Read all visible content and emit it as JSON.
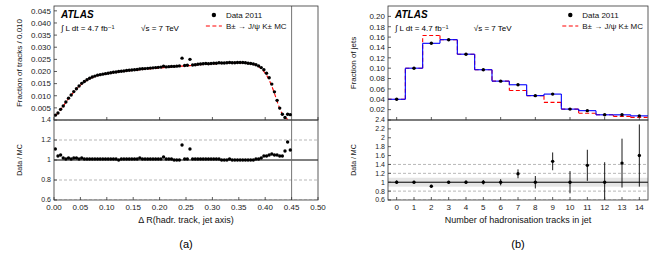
{
  "chart_data": [
    {
      "type": "line",
      "ylabel": "Fraction of tracks / 0.010",
      "annotations": [
        "ATLAS",
        "∫ L dt = 4.7 fb⁻¹",
        "√s = 7 TeV"
      ],
      "legend": "upper right",
      "tick_labels": "y",
      "xlim": [
        0.0,
        0.5
      ],
      "ylim": [
        0.0,
        0.047
      ],
      "xticks": [
        0,
        0.1,
        0.2,
        0.3,
        0.4,
        0.5
      ],
      "yticks": [
        0.005,
        {
          "value": 0.01,
          "label": "0.010"
        },
        0.015,
        {
          "value": 0.02,
          "label": "0.020"
        },
        0.025,
        {
          "value": 0.03,
          "label": "0.030"
        },
        0.035,
        {
          "value": 0.04,
          "label": "0.040"
        },
        0.045
      ],
      "vlines": [
        0.45
      ],
      "x": [
        0.0025,
        0.0075,
        0.0125,
        0.0175,
        0.0225,
        0.0275,
        0.0325,
        0.0375,
        0.0425,
        0.0475,
        0.0525,
        0.0575,
        0.0625,
        0.0675,
        0.0725,
        0.0775,
        0.0825,
        0.0875,
        0.0925,
        0.0975,
        0.1025,
        0.1075,
        0.1125,
        0.1175,
        0.1225,
        0.1275,
        0.1325,
        0.1375,
        0.1425,
        0.1475,
        0.1525,
        0.1575,
        0.1625,
        0.1675,
        0.1725,
        0.1775,
        0.1825,
        0.1875,
        0.1925,
        0.1975,
        0.2025,
        0.2075,
        0.2125,
        0.2175,
        0.2225,
        0.2275,
        0.2325,
        0.2375,
        0.2425,
        0.2475,
        0.2525,
        0.2575,
        0.2625,
        0.2675,
        0.2725,
        0.2775,
        0.2825,
        0.2875,
        0.2925,
        0.2975,
        0.3025,
        0.3075,
        0.3125,
        0.3175,
        0.3225,
        0.3275,
        0.3325,
        0.3375,
        0.3425,
        0.3475,
        0.3525,
        0.3575,
        0.3625,
        0.3675,
        0.3725,
        0.3775,
        0.3825,
        0.3875,
        0.3925,
        0.3975,
        0.4025,
        0.4075,
        0.4125,
        0.4175,
        0.4225,
        0.4275,
        0.4325,
        0.4375,
        0.4425,
        0.4475
      ],
      "series": [
        {
          "name": "Data 2011",
          "type": "scatter",
          "color": "black",
          "marker": "dot",
          "values": [
            0.002,
            0.0029,
            0.0044,
            0.0058,
            0.0074,
            0.009,
            0.0103,
            0.0117,
            0.0129,
            0.014,
            0.0151,
            0.0159,
            0.0166,
            0.0172,
            0.0177,
            0.0181,
            0.0185,
            0.0187,
            0.0189,
            0.0191,
            0.0193,
            0.0195,
            0.0197,
            0.0198,
            0.02,
            0.0201,
            0.0202,
            0.0204,
            0.0205,
            0.0206,
            0.0207,
            0.0208,
            0.021,
            0.0211,
            0.0212,
            0.0213,
            0.0214,
            0.0215,
            0.0216,
            0.0217,
            0.0218,
            0.0222,
            0.0219,
            0.022,
            0.0221,
            0.0221,
            0.0222,
            0.0223,
            0.0255,
            0.0225,
            0.0226,
            0.025,
            0.0227,
            0.0228,
            0.023,
            0.0231,
            0.0232,
            0.0233,
            0.0232,
            0.0233,
            0.0234,
            0.0234,
            0.0236,
            0.0235,
            0.0235,
            0.0236,
            0.0237,
            0.0236,
            0.0236,
            0.0237,
            0.0237,
            0.0237,
            0.0236,
            0.0234,
            0.0233,
            0.0231,
            0.0228,
            0.0223,
            0.0216,
            0.0207,
            0.0193,
            0.0174,
            0.0148,
            0.0116,
            0.0081,
            0.0049,
            0.0024,
            0.001,
            0.0024,
            0.0022
          ]
        },
        {
          "name": "B± → J/ψ K± MC",
          "type": "line",
          "color": "red",
          "line_style": "dashed",
          "values": [
            0.0018,
            0.0028,
            0.0042,
            0.0057,
            0.0073,
            0.0088,
            0.0102,
            0.0115,
            0.0127,
            0.0138,
            0.0148,
            0.0157,
            0.0164,
            0.017,
            0.0175,
            0.0179,
            0.0183,
            0.0186,
            0.0188,
            0.019,
            0.0192,
            0.0194,
            0.0196,
            0.0197,
            0.0199,
            0.02,
            0.0201,
            0.0202,
            0.0203,
            0.0204,
            0.0205,
            0.0206,
            0.0207,
            0.0208,
            0.0209,
            0.021,
            0.0211,
            0.0212,
            0.0213,
            0.0214,
            0.0215,
            0.0216,
            0.0217,
            0.0218,
            0.0219,
            0.022,
            0.0221,
            0.0222,
            0.0222,
            0.0223,
            0.0224,
            0.0224,
            0.0225,
            0.0226,
            0.0227,
            0.0228,
            0.0229,
            0.0229,
            0.023,
            0.0231,
            0.0232,
            0.0232,
            0.0233,
            0.0234,
            0.0234,
            0.0235,
            0.0235,
            0.0236,
            0.0236,
            0.0236,
            0.0236,
            0.0236,
            0.0235,
            0.0234,
            0.0233,
            0.023,
            0.0226,
            0.022,
            0.0212,
            0.02,
            0.0185,
            0.0165,
            0.014,
            0.011,
            0.0077,
            0.0047,
            0.0023,
            0.0009,
            0.0003,
            0.0001
          ]
        }
      ]
    },
    {
      "type": "scatter",
      "xlabel": "Δ R(hadr. track, jet axis)",
      "ylabel": "Data / MC",
      "annotations": [
        "(a)"
      ],
      "xlim": [
        0.0,
        0.5
      ],
      "ylim": [
        0.6,
        1.4
      ],
      "xticks": [
        {
          "value": 0,
          "label": "0.00"
        },
        0.05,
        {
          "value": 0.1,
          "label": "0.10"
        },
        0.15,
        {
          "value": 0.2,
          "label": "0.20"
        },
        0.25,
        {
          "value": 0.3,
          "label": "0.30"
        },
        0.35,
        {
          "value": 0.4,
          "label": "0.40"
        },
        0.45,
        {
          "value": 0.5,
          "label": "0.50"
        }
      ],
      "yticks": [
        0.6,
        0.8,
        1,
        1.2,
        1.4
      ],
      "hlines": [
        0.6,
        0.8,
        1.2,
        1.4
      ],
      "reference_line": 1.0,
      "vlines": [
        0.45
      ],
      "x": [
        0.0025,
        0.0075,
        0.0125,
        0.0175,
        0.0225,
        0.0275,
        0.0325,
        0.0375,
        0.0425,
        0.0475,
        0.0525,
        0.0575,
        0.0625,
        0.0675,
        0.0725,
        0.0775,
        0.0825,
        0.0875,
        0.0925,
        0.0975,
        0.1025,
        0.1075,
        0.1125,
        0.1175,
        0.1225,
        0.1275,
        0.1325,
        0.1375,
        0.1425,
        0.1475,
        0.1525,
        0.1575,
        0.1625,
        0.1675,
        0.1725,
        0.1775,
        0.1825,
        0.1875,
        0.1925,
        0.1975,
        0.2025,
        0.2075,
        0.2125,
        0.2175,
        0.2225,
        0.2275,
        0.2325,
        0.2375,
        0.2425,
        0.2475,
        0.2525,
        0.2575,
        0.2625,
        0.2675,
        0.2725,
        0.2775,
        0.2825,
        0.2875,
        0.2925,
        0.2975,
        0.3025,
        0.3075,
        0.3125,
        0.3175,
        0.3225,
        0.3275,
        0.3325,
        0.3375,
        0.3425,
        0.3475,
        0.3525,
        0.3575,
        0.3625,
        0.3675,
        0.3725,
        0.3775,
        0.3825,
        0.3875,
        0.3925,
        0.3975,
        0.4025,
        0.4075,
        0.4125,
        0.4175,
        0.4225,
        0.4275,
        0.4325,
        0.4375,
        0.4425,
        0.4475
      ],
      "series": [
        {
          "type": "scatter",
          "color": "black",
          "marker": "dot",
          "values": [
            1.11,
            1.04,
            1.05,
            1.02,
            1.01,
            1.02,
            1.01,
            1.02,
            1.02,
            1.01,
            1.02,
            1.01,
            1.01,
            1.01,
            1.01,
            1.01,
            1.01,
            1.01,
            1.01,
            1.01,
            1.01,
            1.01,
            1.01,
            1.01,
            1.0,
            1.01,
            1.01,
            1.01,
            1.01,
            1.01,
            1.01,
            1.01,
            1.02,
            1.01,
            1.01,
            1.01,
            1.01,
            1.01,
            1.01,
            1.01,
            1.01,
            1.03,
            1.01,
            1.01,
            1.01,
            1.0,
            1.0,
            1.0,
            1.15,
            1.01,
            1.01,
            1.11,
            1.01,
            1.01,
            1.01,
            1.01,
            1.01,
            1.01,
            1.01,
            1.01,
            1.01,
            1.01,
            1.01,
            1.0,
            1.0,
            1.0,
            1.01,
            1.0,
            1.0,
            1.0,
            1.0,
            1.0,
            1.0,
            1.0,
            1.0,
            1.0,
            1.01,
            1.01,
            1.02,
            1.04,
            1.04,
            1.05,
            1.06,
            1.05,
            1.05,
            1.04,
            1.04,
            1.09,
            1.18,
            1.1
          ]
        }
      ]
    },
    {
      "type": "step",
      "ylabel": "Fraction of jets",
      "annotations": [
        "ATLAS",
        "∫ L dt = 4.7 fb⁻¹",
        "√s = 7 TeV"
      ],
      "legend": "upper right",
      "tick_labels": "y",
      "xlim": [
        -0.5,
        14.5
      ],
      "ylim": [
        0.0,
        0.22
      ],
      "xticks": [
        0,
        2,
        4,
        6,
        8,
        10,
        12,
        14
      ],
      "yticks": [
        0.02,
        0.04,
        0.06,
        0.08,
        {
          "value": 0.1,
          "label": "0.10"
        },
        0.12,
        0.14,
        0.16,
        0.18,
        {
          "value": 0.2,
          "label": "0.20"
        }
      ],
      "bins": [
        -0.5,
        0.5,
        1.5,
        2.5,
        3.5,
        4.5,
        5.5,
        6.5,
        7.5,
        8.5,
        9.5,
        10.5,
        11.5,
        12.5,
        13.5,
        14.5
      ],
      "series": [
        {
          "name": "Data 2011",
          "type": "scatter",
          "color": "black",
          "marker": "dot",
          "x": [
            0,
            1,
            2,
            3,
            4,
            5,
            6,
            7,
            8,
            9,
            10,
            11,
            12,
            13,
            14
          ],
          "values": [
            0.04,
            0.1,
            0.148,
            0.155,
            0.127,
            0.097,
            0.075,
            0.068,
            0.047,
            0.05,
            0.021,
            0.018,
            0.01,
            0.01,
            0.008
          ]
        },
        {
          "name": "B± → J/ψ K± MC",
          "type": "step",
          "color": "red",
          "line_style": "dashed",
          "values": [
            0.04,
            0.1,
            0.163,
            0.155,
            0.127,
            0.097,
            0.075,
            0.057,
            0.047,
            0.034,
            0.021,
            0.013,
            0.01,
            0.007,
            0.005
          ]
        },
        {
          "type": "step",
          "color": "blue",
          "line_style": "solid",
          "values": [
            0.04,
            0.1,
            0.148,
            0.155,
            0.127,
            0.097,
            0.075,
            0.068,
            0.047,
            0.05,
            0.021,
            0.018,
            0.01,
            0.01,
            0.008
          ]
        }
      ]
    },
    {
      "type": "scatter",
      "xlabel": "Number of hadronisation tracks in jet",
      "ylabel": "Data / MC",
      "annotations": [
        "(b)"
      ],
      "xlim": [
        -0.5,
        14.5
      ],
      "ylim": [
        0.6,
        2.4
      ],
      "xticks": [
        0,
        1,
        2,
        3,
        4,
        5,
        6,
        7,
        8,
        9,
        10,
        11,
        12,
        13,
        14
      ],
      "yticks": [
        0.6,
        0.8,
        1,
        1.2,
        1.4,
        1.6,
        1.8,
        2,
        2.2,
        2.4
      ],
      "hlines": [
        0.6,
        0.8,
        1.2,
        1.4
      ],
      "reference_line": 1.0,
      "band": [
        0.9,
        1.1
      ],
      "x": [
        0,
        1,
        2,
        3,
        4,
        5,
        6,
        7,
        8,
        9,
        10,
        11,
        12,
        13,
        14
      ],
      "series": [
        {
          "type": "scatter",
          "color": "black",
          "marker": "dot",
          "values": [
            1.0,
            1.0,
            0.91,
            1.0,
            1.0,
            1.0,
            1.0,
            1.19,
            1.0,
            1.47,
            1.0,
            1.38,
            1.0,
            1.43,
            1.6
          ],
          "errors": [
            0.04,
            0.03,
            0.03,
            0.03,
            0.04,
            0.05,
            0.07,
            0.1,
            0.14,
            0.2,
            0.25,
            0.35,
            0.45,
            0.55,
            0.7
          ]
        }
      ]
    }
  ]
}
